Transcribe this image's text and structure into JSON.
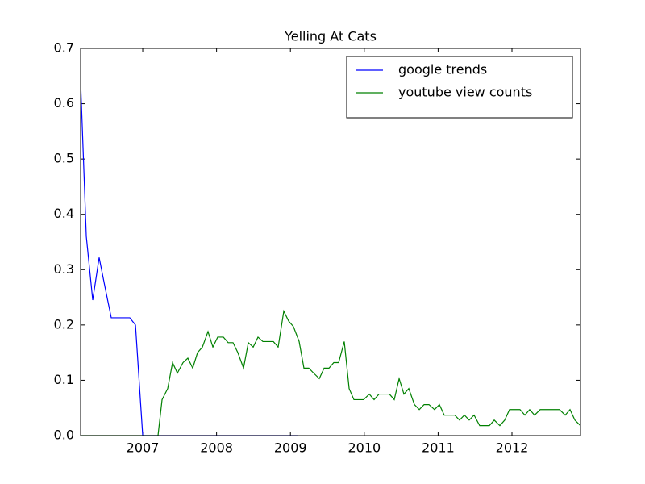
{
  "chart_data": {
    "type": "line",
    "title": "Yelling At Cats",
    "xlim": [
      2006.159,
      2012.928
    ],
    "xticks": [
      2007,
      2008,
      2009,
      2010,
      2011,
      2012
    ],
    "ylim": [
      0,
      0.7
    ],
    "yticks": [
      {
        "value": 0,
        "label": "0.0"
      },
      {
        "value": 0.1,
        "label": "0.1"
      },
      {
        "value": 0.2,
        "label": "0.2"
      },
      {
        "value": 0.3,
        "label": "0.3"
      },
      {
        "value": 0.4,
        "label": "0.4"
      },
      {
        "value": 0.5,
        "label": "0.5"
      },
      {
        "value": 0.6,
        "label": "0.6"
      },
      {
        "value": 0.7,
        "label": "0.7"
      }
    ],
    "grid": false,
    "legend": "upper right",
    "series": [
      {
        "name": "google trends",
        "color": "#0000ff",
        "x": [
          2006.159,
          2006.236,
          2006.323,
          2006.41,
          2006.487,
          2006.574,
          2006.825,
          2006.902,
          2007.0,
          2009.096
        ],
        "values": [
          0.64,
          0.36,
          0.245,
          0.322,
          0.27,
          0.213,
          0.213,
          0.2,
          0,
          0
        ]
      },
      {
        "name": "youtube view counts",
        "color": "#008000",
        "x": [
          2006.159,
          2007.207,
          2007.262,
          2007.338,
          2007.404,
          2007.469,
          2007.546,
          2007.611,
          2007.677,
          2007.742,
          2007.808,
          2007.884,
          2007.95,
          2008.015,
          2008.092,
          2008.157,
          2008.223,
          2008.288,
          2008.365,
          2008.43,
          2008.496,
          2008.561,
          2008.627,
          2008.703,
          2008.769,
          2008.834,
          2008.91,
          2008.976,
          2009.041,
          2009.118,
          2009.183,
          2009.249,
          2009.314,
          2009.391,
          2009.456,
          2009.522,
          2009.587,
          2009.653,
          2009.729,
          2009.795,
          2009.86,
          2009.926,
          2009.991,
          2010.068,
          2010.133,
          2010.199,
          2010.264,
          2010.341,
          2010.406,
          2010.472,
          2010.537,
          2010.603,
          2010.679,
          2010.745,
          2010.81,
          2010.876,
          2010.952,
          2011.017,
          2011.083,
          2011.148,
          2011.225,
          2011.29,
          2011.356,
          2011.421,
          2011.487,
          2011.563,
          2011.629,
          2011.694,
          2011.76,
          2011.836,
          2011.902,
          2011.967,
          2012.033,
          2012.109,
          2012.175,
          2012.24,
          2012.306,
          2012.382,
          2012.448,
          2012.513,
          2012.579,
          2012.644,
          2012.721,
          2012.786,
          2012.852,
          2012.928
        ],
        "values": [
          0,
          0,
          0.065,
          0.085,
          0.132,
          0.113,
          0.132,
          0.14,
          0.122,
          0.15,
          0.16,
          0.188,
          0.16,
          0.178,
          0.178,
          0.168,
          0.168,
          0.15,
          0.122,
          0.168,
          0.16,
          0.178,
          0.17,
          0.17,
          0.17,
          0.16,
          0.225,
          0.207,
          0.197,
          0.17,
          0.122,
          0.122,
          0.113,
          0.103,
          0.122,
          0.122,
          0.132,
          0.132,
          0.17,
          0.085,
          0.065,
          0.065,
          0.065,
          0.075,
          0.065,
          0.075,
          0.075,
          0.075,
          0.065,
          0.103,
          0.075,
          0.085,
          0.056,
          0.047,
          0.056,
          0.056,
          0.047,
          0.056,
          0.037,
          0.037,
          0.037,
          0.028,
          0.037,
          0.028,
          0.037,
          0.018,
          0.018,
          0.018,
          0.028,
          0.018,
          0.028,
          0.047,
          0.047,
          0.047,
          0.037,
          0.047,
          0.037,
          0.047,
          0.047,
          0.047,
          0.047,
          0.047,
          0.037,
          0.047,
          0.028,
          0.018
        ]
      }
    ]
  }
}
